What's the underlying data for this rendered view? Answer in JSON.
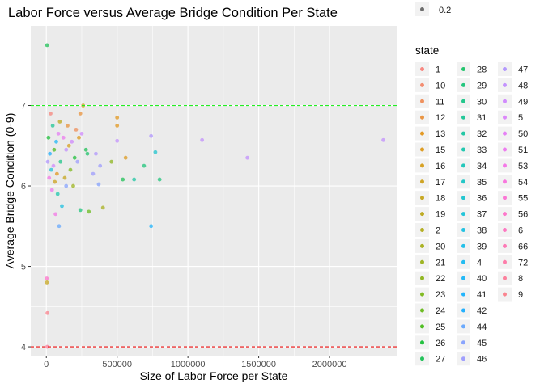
{
  "chart_data": {
    "type": "scatter",
    "title": "Labor Force versus Average Bridge Condition Per State",
    "xlabel": "Size of Labor Force per State",
    "ylabel": "Average Bridge Condition (0-9)",
    "xlim": [
      -110000,
      2480000
    ],
    "ylim": [
      3.89,
      7.99
    ],
    "x_ticks": [
      0,
      500000,
      1000000,
      1500000,
      2000000
    ],
    "x_tick_labels": [
      "0",
      "500000",
      "1000000",
      "1500000",
      "2000000"
    ],
    "y_ticks": [
      4,
      5,
      6,
      7
    ],
    "y_tick_labels": [
      "4",
      "5",
      "6",
      "7"
    ],
    "grid": true,
    "reference_lines": [
      {
        "y": 7,
        "color": "#22ee22",
        "style": "dashed"
      },
      {
        "y": 4,
        "color": "#ee1111",
        "style": "dashed"
      }
    ],
    "legend_alpha": {
      "label": "0.2"
    },
    "legend_state": {
      "title": "state",
      "placement": "right",
      "entries": [
        "1",
        "10",
        "11",
        "12",
        "13",
        "15",
        "16",
        "17",
        "18",
        "19",
        "2",
        "20",
        "21",
        "22",
        "23",
        "24",
        "25",
        "26",
        "27",
        "28",
        "29",
        "30",
        "31",
        "32",
        "33",
        "34",
        "35",
        "36",
        "37",
        "38",
        "39",
        "4",
        "40",
        "41",
        "42",
        "44",
        "45",
        "46",
        "47",
        "48",
        "49",
        "5",
        "50",
        "51",
        "53",
        "54",
        "55",
        "56",
        "6",
        "66",
        "72",
        "8",
        "9"
      ]
    },
    "points": [
      {
        "x": 2380000,
        "y": 6.57,
        "state": "48"
      },
      {
        "x": 1420000,
        "y": 6.35,
        "state": "48"
      },
      {
        "x": 1100000,
        "y": 6.57,
        "state": "48"
      },
      {
        "x": 800000,
        "y": 6.08,
        "state": "29"
      },
      {
        "x": 770000,
        "y": 6.42,
        "state": "36"
      },
      {
        "x": 740000,
        "y": 5.5,
        "state": "41"
      },
      {
        "x": 740000,
        "y": 6.62,
        "state": "47"
      },
      {
        "x": 690000,
        "y": 6.25,
        "state": "29"
      },
      {
        "x": 620000,
        "y": 6.08,
        "state": "32"
      },
      {
        "x": 560000,
        "y": 6.35,
        "state": "15"
      },
      {
        "x": 540000,
        "y": 6.08,
        "state": "27"
      },
      {
        "x": 500000,
        "y": 6.75,
        "state": "13"
      },
      {
        "x": 500000,
        "y": 6.56,
        "state": "48"
      },
      {
        "x": 500000,
        "y": 6.85,
        "state": "13"
      },
      {
        "x": 460000,
        "y": 6.3,
        "state": "22"
      },
      {
        "x": 400000,
        "y": 5.73,
        "state": "20"
      },
      {
        "x": 380000,
        "y": 6.25,
        "state": "46"
      },
      {
        "x": 370000,
        "y": 6.02,
        "state": "45"
      },
      {
        "x": 350000,
        "y": 6.4,
        "state": "47"
      },
      {
        "x": 330000,
        "y": 6.15,
        "state": "46"
      },
      {
        "x": 300000,
        "y": 5.68,
        "state": "24"
      },
      {
        "x": 290000,
        "y": 6.4,
        "state": "28"
      },
      {
        "x": 280000,
        "y": 6.45,
        "state": "27"
      },
      {
        "x": 260000,
        "y": 7.0,
        "state": "17"
      },
      {
        "x": 250000,
        "y": 6.65,
        "state": "49"
      },
      {
        "x": 240000,
        "y": 6.9,
        "state": "12"
      },
      {
        "x": 240000,
        "y": 5.7,
        "state": "29"
      },
      {
        "x": 230000,
        "y": 6.6,
        "state": "15"
      },
      {
        "x": 220000,
        "y": 6.3,
        "state": "46"
      },
      {
        "x": 210000,
        "y": 6.7,
        "state": "11"
      },
      {
        "x": 200000,
        "y": 6.35,
        "state": "26"
      },
      {
        "x": 190000,
        "y": 6.0,
        "state": "21"
      },
      {
        "x": 180000,
        "y": 6.55,
        "state": "49"
      },
      {
        "x": 170000,
        "y": 6.2,
        "state": "23"
      },
      {
        "x": 160000,
        "y": 6.5,
        "state": "16"
      },
      {
        "x": 150000,
        "y": 6.75,
        "state": "12"
      },
      {
        "x": 140000,
        "y": 6.0,
        "state": "45"
      },
      {
        "x": 140000,
        "y": 6.45,
        "state": "48"
      },
      {
        "x": 130000,
        "y": 6.1,
        "state": "18"
      },
      {
        "x": 120000,
        "y": 6.6,
        "state": "51"
      },
      {
        "x": 110000,
        "y": 5.75,
        "state": "38"
      },
      {
        "x": 100000,
        "y": 6.3,
        "state": "30"
      },
      {
        "x": 95000,
        "y": 6.8,
        "state": "19"
      },
      {
        "x": 90000,
        "y": 5.5,
        "state": "44"
      },
      {
        "x": 85000,
        "y": 6.65,
        "state": "50"
      },
      {
        "x": 80000,
        "y": 5.9,
        "state": "33"
      },
      {
        "x": 75000,
        "y": 6.15,
        "state": "13"
      },
      {
        "x": 70000,
        "y": 6.55,
        "state": "40"
      },
      {
        "x": 65000,
        "y": 5.65,
        "state": "53"
      },
      {
        "x": 60000,
        "y": 6.05,
        "state": "17"
      },
      {
        "x": 55000,
        "y": 6.45,
        "state": "25"
      },
      {
        "x": 50000,
        "y": 6.25,
        "state": "49"
      },
      {
        "x": 45000,
        "y": 6.75,
        "state": "31"
      },
      {
        "x": 40000,
        "y": 5.95,
        "state": "51"
      },
      {
        "x": 35000,
        "y": 6.2,
        "state": "37"
      },
      {
        "x": 30000,
        "y": 6.9,
        "state": "1"
      },
      {
        "x": 25000,
        "y": 6.4,
        "state": "42"
      },
      {
        "x": 20000,
        "y": 6.1,
        "state": "53"
      },
      {
        "x": 15000,
        "y": 6.6,
        "state": "26"
      },
      {
        "x": 10000,
        "y": 6.3,
        "state": "47"
      },
      {
        "x": 8000,
        "y": 4.42,
        "state": "9"
      },
      {
        "x": 6000,
        "y": 4.0,
        "state": "8"
      },
      {
        "x": 5000,
        "y": 7.75,
        "state": "27"
      },
      {
        "x": 4000,
        "y": 4.8,
        "state": "18"
      },
      {
        "x": 3000,
        "y": 4.85,
        "state": "56"
      }
    ]
  }
}
